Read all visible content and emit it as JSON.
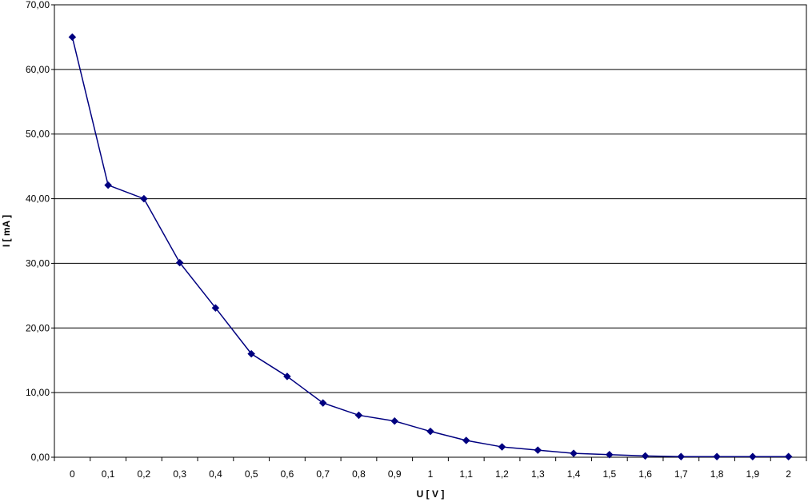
{
  "chart_data": {
    "type": "line",
    "title": "",
    "xlabel": "U [ V ]",
    "ylabel": "I [ mA ]",
    "categories": [
      "0",
      "0,1",
      "0,2",
      "0,3",
      "0,4",
      "0,5",
      "0,6",
      "0,7",
      "0,8",
      "0,9",
      "1",
      "1,1",
      "1,2",
      "1,3",
      "1,4",
      "1,5",
      "1,6",
      "1,7",
      "1,8",
      "1,9",
      "2"
    ],
    "x": [
      0,
      0.1,
      0.2,
      0.3,
      0.4,
      0.5,
      0.6,
      0.7,
      0.8,
      0.9,
      1.0,
      1.1,
      1.2,
      1.3,
      1.4,
      1.5,
      1.6,
      1.7,
      1.8,
      1.9,
      2.0
    ],
    "series": [
      {
        "values": [
          65.0,
          42.1,
          40.0,
          30.1,
          23.1,
          16.0,
          12.5,
          8.4,
          6.5,
          5.6,
          4.0,
          2.6,
          1.6,
          1.1,
          0.6,
          0.4,
          0.2,
          0.1,
          0.1,
          0.1,
          0.1
        ],
        "color": "#000080"
      }
    ],
    "ylim": [
      0,
      70
    ],
    "yticks": [
      0,
      10,
      20,
      30,
      40,
      50,
      60,
      70
    ],
    "ytick_labels": [
      "0,00",
      "10,00",
      "20,00",
      "30,00",
      "40,00",
      "50,00",
      "60,00",
      "70,00"
    ],
    "grid": "horizontal",
    "legend": "none",
    "marker": "diamond"
  }
}
